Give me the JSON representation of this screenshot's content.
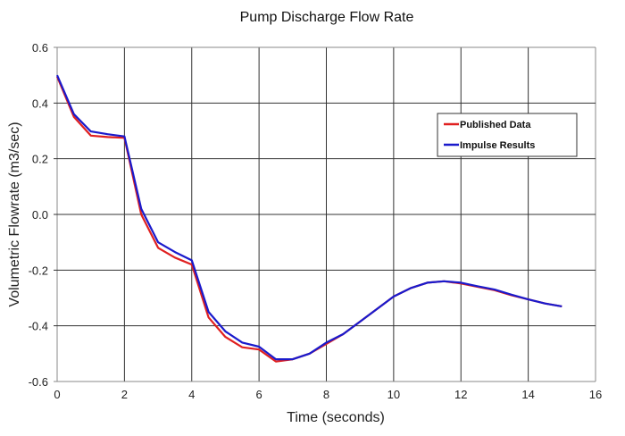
{
  "chart_data": {
    "type": "line",
    "title": "Pump Discharge Flow Rate",
    "xlabel": "Time (seconds)",
    "ylabel": "Volumetric Flowrate (m3/sec)",
    "xlim": [
      0,
      16
    ],
    "ylim": [
      -0.6,
      0.6
    ],
    "xticks": [
      "0",
      "2",
      "4",
      "6",
      "8",
      "10",
      "12",
      "14",
      "16"
    ],
    "yticks": [
      "0.6",
      "0.4",
      "0.2",
      "0.0",
      "-0.2",
      "-0.4",
      "-0.6"
    ],
    "grid": true,
    "legend_position": "top-right",
    "series": [
      {
        "name": "Published Data",
        "color": "#e02020",
        "x": [
          0,
          0.5,
          1,
          1.5,
          2,
          2.5,
          3,
          3.5,
          4,
          4.5,
          5,
          5.5,
          6,
          6.5,
          7,
          7.5,
          8,
          8.5,
          9,
          9.5,
          10,
          10.5,
          11,
          11.5,
          12,
          12.5,
          13,
          13.5,
          14,
          14.5,
          15
        ],
        "y": [
          0.495,
          0.35,
          0.283,
          0.278,
          0.275,
          0.0,
          -0.12,
          -0.155,
          -0.18,
          -0.37,
          -0.44,
          -0.477,
          -0.485,
          -0.528,
          -0.52,
          -0.5,
          -0.465,
          -0.43,
          -0.385,
          -0.34,
          -0.295,
          -0.265,
          -0.245,
          -0.24,
          -0.248,
          -0.26,
          -0.272,
          -0.29,
          -0.305,
          -0.32,
          -0.33
        ]
      },
      {
        "name": "Impulse Results",
        "color": "#1a1acc",
        "x": [
          0,
          0.5,
          1,
          1.5,
          2,
          2.5,
          3,
          3.5,
          4,
          4.5,
          5,
          5.5,
          6,
          6.5,
          7,
          7.5,
          8,
          8.5,
          9,
          9.5,
          10,
          10.5,
          11,
          11.5,
          12,
          12.5,
          13,
          13.5,
          14,
          14.5,
          15
        ],
        "y": [
          0.5,
          0.36,
          0.298,
          0.288,
          0.28,
          0.02,
          -0.1,
          -0.135,
          -0.165,
          -0.35,
          -0.42,
          -0.46,
          -0.475,
          -0.52,
          -0.52,
          -0.5,
          -0.46,
          -0.43,
          -0.385,
          -0.34,
          -0.295,
          -0.265,
          -0.245,
          -0.24,
          -0.245,
          -0.258,
          -0.27,
          -0.288,
          -0.305,
          -0.32,
          -0.33
        ]
      }
    ]
  }
}
